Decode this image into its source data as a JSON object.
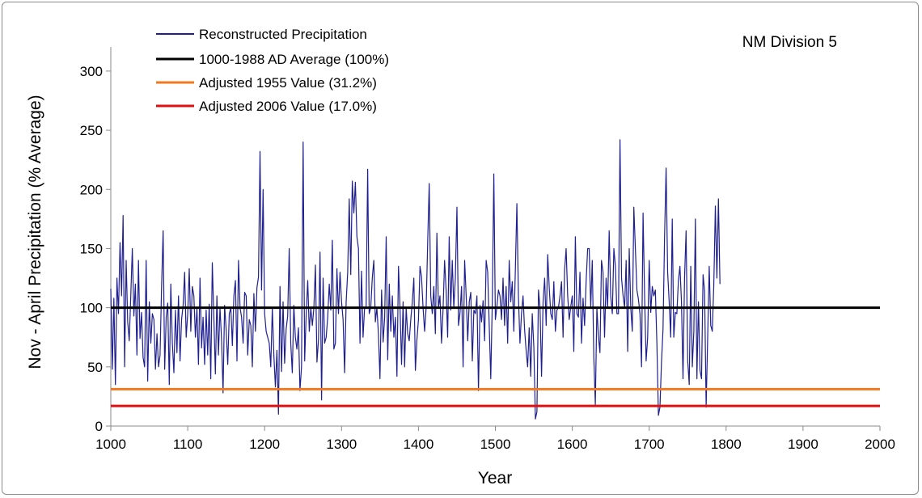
{
  "chart_data": {
    "type": "line",
    "title": "",
    "annotation": "NM Division 5",
    "xlabel": "Year",
    "ylabel": "Nov - April Precipitation (% Average)",
    "xlim": [
      1000,
      2000
    ],
    "ylim": [
      0,
      330
    ],
    "xticks": [
      1000,
      1100,
      1200,
      1300,
      1400,
      1500,
      1600,
      1700,
      1800,
      1900,
      2000
    ],
    "yticks": [
      0,
      50,
      100,
      150,
      200,
      250,
      300
    ],
    "grid": false,
    "legend_position": "top-left",
    "series": [
      {
        "name": "Reconstructed Precipitation",
        "color": "#1f1f8f",
        "x_start": 1000,
        "x_step": 2,
        "values": [
          116,
          48,
          108,
          35,
          125,
          95,
          155,
          110,
          178,
          50,
          140,
          88,
          72,
          110,
          150,
          93,
          120,
          60,
          140,
          74,
          96,
          58,
          50,
          140,
          38,
          105,
          70,
          95,
          90,
          48,
          78,
          50,
          60,
          118,
          165,
          48,
          92,
          104,
          35,
          120,
          70,
          45,
          98,
          62,
          110,
          55,
          90,
          102,
          130,
          75,
          95,
          133,
          80,
          118,
          110,
          75,
          100,
          52,
          125,
          66,
          92,
          52,
          98,
          60,
          103,
          40,
          138,
          92,
          44,
          110,
          60,
          100,
          74,
          28,
          102,
          82,
          52,
          95,
          100,
          68,
          110,
          123,
          55,
          140,
          100,
          92,
          70,
          113,
          110,
          60,
          90,
          85,
          50,
          112,
          80,
          117,
          126,
          232,
          115,
          200,
          95,
          80,
          75,
          70,
          50,
          100,
          60,
          33,
          64,
          10,
          118,
          46,
          105,
          53,
          82,
          93,
          150,
          70,
          45,
          102,
          75,
          65,
          83,
          30,
          50,
          240,
          55,
          95,
          123,
          80,
          100,
          85,
          100,
          136,
          54,
          73,
          147,
          22,
          125,
          70,
          75,
          92,
          120,
          98,
          157,
          65,
          70,
          133,
          95,
          130,
          105,
          90,
          45,
          105,
          130,
          192,
          128,
          207,
          180,
          206,
          160,
          150,
          70,
          131,
          75,
          100,
          100,
          217,
          95,
          100,
          125,
          140,
          88,
          100,
          78,
          40,
          115,
          71,
          92,
          160,
          56,
          120,
          80,
          110,
          75,
          92,
          42,
          135,
          100,
          52,
          105,
          50,
          100,
          78,
          72,
          90,
          105,
          125,
          47,
          73,
          90,
          135,
          126,
          100,
          80,
          100,
          155,
          205,
          110,
          95,
          118,
          78,
          163,
          100,
          110,
          70,
          98,
          140,
          115,
          75,
          160,
          98,
          140,
          100,
          125,
          185,
          85,
          96,
          118,
          50,
          140,
          110,
          72,
          105,
          113,
          55,
          98,
          95,
          110,
          30,
          102,
          88,
          106,
          72,
          140,
          130,
          85,
          40,
          105,
          213,
          90,
          101,
          115,
          110,
          90,
          125,
          85,
          118,
          70,
          140,
          105,
          122,
          80,
          132,
          188,
          110,
          70,
          95,
          110,
          82,
          64,
          50,
          83,
          42,
          95,
          66,
          6,
          12,
          115,
          100,
          42,
          105,
          125,
          85,
          145,
          117,
          95,
          90,
          122,
          80,
          98,
          100,
          110,
          122,
          75,
          132,
          150,
          110,
          90,
          101,
          110,
          63,
          160,
          95,
          92,
          130,
          70,
          108,
          85,
          122,
          150,
          150,
          100,
          140,
          58,
          18,
          100,
          76,
          62,
          140,
          130,
          75,
          125,
          100,
          165,
          110,
          95,
          150,
          135,
          95,
          95,
          242,
          125,
          110,
          100,
          140,
          63,
          150,
          100,
          80,
          185,
          150,
          115,
          107,
          95,
          50,
          180,
          110,
          55,
          75,
          140,
          96,
          118,
          110,
          115,
          70,
          9,
          16,
          54,
          82,
          160,
          218,
          130,
          105,
          75,
          175,
          75,
          96,
          95,
          123,
          135,
          105,
          40,
          125,
          165,
          55,
          35,
          135,
          50,
          80,
          175,
          40,
          105,
          47,
          40,
          128,
          114,
          16,
          75,
          135,
          85,
          80,
          120,
          186,
          125,
          192,
          120
        ]
      },
      {
        "name": "1000-1988 AD Average (100%)",
        "color": "#000000",
        "value": 100
      },
      {
        "name": "Adjusted 1955 Value  (31.2%)",
        "color": "#f07820",
        "value": 31.2
      },
      {
        "name": "Adjusted 2006 Value  (17.0%)",
        "color": "#e01010",
        "value": 17.0
      }
    ]
  }
}
